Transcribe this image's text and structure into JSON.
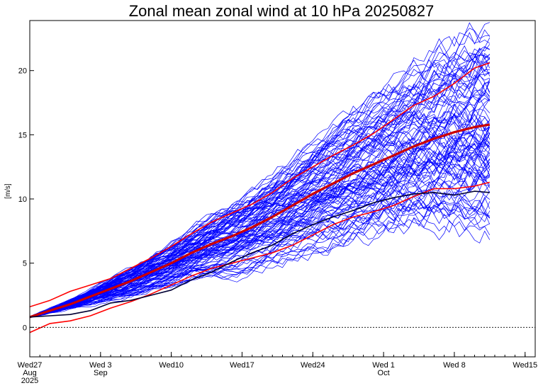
{
  "chart_data": {
    "type": "line",
    "title": "Zonal mean zonal wind at 10 hPa 20250827",
    "ylabel": "[m/s]",
    "xlabel": "",
    "xlim": [
      0,
      50
    ],
    "ylim": [
      -2.3,
      23.9
    ],
    "grid": false,
    "legend": "none",
    "y_ticks": [
      0,
      5,
      10,
      15,
      20
    ],
    "x_ticks": [
      {
        "day": 0,
        "lines": [
          "Wed27",
          "Aug",
          "2025"
        ]
      },
      {
        "day": 7,
        "lines": [
          "Wed 3",
          "Sep"
        ]
      },
      {
        "day": 14,
        "lines": [
          "Wed10"
        ]
      },
      {
        "day": 21,
        "lines": [
          "Wed17"
        ]
      },
      {
        "day": 28,
        "lines": [
          "Wed24"
        ]
      },
      {
        "day": 35,
        "lines": [
          "Wed 1",
          "Oct"
        ]
      },
      {
        "day": 42,
        "lines": [
          "Wed 8"
        ]
      },
      {
        "day": 49,
        "lines": [
          "Wed15"
        ]
      }
    ],
    "zero_line": true,
    "forecast_end_day": 45.5,
    "ensemble": {
      "count": 100,
      "color": "#0000ff",
      "members_note": "ensemble spread envelope",
      "start": 0.75,
      "min_end": 8.7,
      "max_end": 22.2
    },
    "series": [
      {
        "color": "#ff0000",
        "role": "upper",
        "x": [
          0,
          2,
          4,
          6,
          8,
          10,
          12,
          14,
          16,
          18,
          20,
          22,
          24,
          26,
          28,
          30,
          32,
          34,
          36,
          38,
          40,
          42,
          44,
          45.5
        ],
        "y": [
          1.6,
          2.1,
          2.8,
          3.3,
          3.8,
          4.6,
          5.4,
          6.3,
          7.3,
          8.2,
          8.9,
          9.6,
          10.5,
          11.6,
          12.5,
          13.4,
          14.2,
          15.1,
          16.2,
          17.3,
          18.0,
          19.0,
          20.2,
          20.6
        ]
      },
      {
        "color": "#cc0000",
        "role": "mean",
        "x": [
          0,
          2,
          4,
          6,
          8,
          10,
          12,
          14,
          16,
          18,
          20,
          22,
          24,
          26,
          28,
          30,
          32,
          34,
          36,
          38,
          40,
          42,
          44,
          45.5
        ],
        "y": [
          0.8,
          1.3,
          1.8,
          2.4,
          3.0,
          3.6,
          4.3,
          5.0,
          5.8,
          6.5,
          7.1,
          7.8,
          8.6,
          9.5,
          10.4,
          11.2,
          12.0,
          12.7,
          13.4,
          14.1,
          14.7,
          15.2,
          15.6,
          15.8
        ]
      },
      {
        "color": "#ff0000",
        "role": "lower",
        "x": [
          0,
          2,
          4,
          6,
          8,
          10,
          12,
          14,
          16,
          18,
          20,
          22,
          24,
          26,
          28,
          30,
          32,
          34,
          36,
          38,
          40,
          42,
          44,
          45.5
        ],
        "y": [
          -0.4,
          0.3,
          0.5,
          0.9,
          1.5,
          2.0,
          2.6,
          3.3,
          4.0,
          4.6,
          5.0,
          5.4,
          5.8,
          6.4,
          7.2,
          8.0,
          8.6,
          9.0,
          9.5,
          10.2,
          10.8,
          10.8,
          11.0,
          11.3
        ]
      },
      {
        "color": "#000033",
        "role": "control",
        "x": [
          0,
          2,
          4,
          6,
          8,
          10,
          12,
          14,
          16,
          18,
          20,
          22,
          24,
          26,
          28,
          30,
          32,
          34,
          36,
          38,
          40,
          42,
          44,
          45.5
        ],
        "y": [
          0.8,
          0.9,
          1.0,
          1.3,
          1.9,
          2.1,
          2.5,
          2.9,
          3.7,
          4.3,
          5.1,
          5.8,
          6.4,
          7.3,
          8.0,
          8.6,
          9.1,
          9.7,
          10.1,
          10.4,
          10.5,
          10.3,
          10.6,
          10.5
        ]
      }
    ]
  }
}
